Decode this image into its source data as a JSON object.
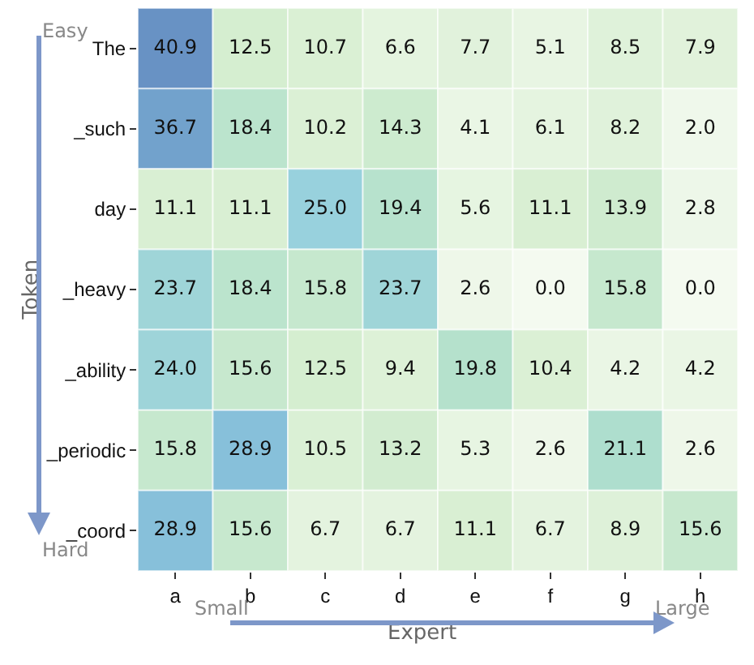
{
  "chart_data": {
    "type": "heatmap",
    "xlabel": "Expert",
    "ylabel": "Token",
    "annotations": [
      "Easy",
      "Hard",
      "Small",
      "Large"
    ],
    "categories": [
      "a",
      "b",
      "c",
      "d",
      "e",
      "f",
      "g",
      "h"
    ],
    "y_categories": [
      "The",
      "_such",
      "day",
      "_heavy",
      "_ability",
      "_periodic",
      "_coord"
    ],
    "cells": [
      [
        40.9,
        12.5,
        10.7,
        6.6,
        7.7,
        5.1,
        8.5,
        7.9
      ],
      [
        36.7,
        18.4,
        10.2,
        14.3,
        4.1,
        6.1,
        8.2,
        2.0
      ],
      [
        11.1,
        11.1,
        25.0,
        19.4,
        5.6,
        11.1,
        13.9,
        2.8
      ],
      [
        23.7,
        18.4,
        15.8,
        23.7,
        2.6,
        0.0,
        15.8,
        0.0
      ],
      [
        24.0,
        15.6,
        12.5,
        9.4,
        19.8,
        10.4,
        4.2,
        4.2
      ],
      [
        15.8,
        28.9,
        10.5,
        13.2,
        5.3,
        2.6,
        21.1,
        2.6
      ],
      [
        28.9,
        15.6,
        6.7,
        6.7,
        11.1,
        6.7,
        8.9,
        15.6
      ]
    ],
    "cell_labels": [
      [
        "40.9",
        "12.5",
        "10.7",
        "6.6",
        "7.7",
        "5.1",
        "8.5",
        "7.9"
      ],
      [
        "36.7",
        "18.4",
        "10.2",
        "14.3",
        "4.1",
        "6.1",
        "8.2",
        "2.0"
      ],
      [
        "11.1",
        "11.1",
        "25.0",
        "19.4",
        "5.6",
        "11.1",
        "13.9",
        "2.8"
      ],
      [
        "23.7",
        "18.4",
        "15.8",
        "23.7",
        "2.6",
        "0.0",
        "15.8",
        "0.0"
      ],
      [
        "24.0",
        "15.6",
        "12.5",
        "9.4",
        "19.8",
        "10.4",
        "4.2",
        "4.2"
      ],
      [
        "15.8",
        "28.9",
        "10.5",
        "13.2",
        "5.3",
        "2.6",
        "21.1",
        "2.6"
      ],
      [
        "28.9",
        "15.6",
        "6.7",
        "6.7",
        "11.1",
        "6.7",
        "8.9",
        "15.6"
      ]
    ]
  }
}
